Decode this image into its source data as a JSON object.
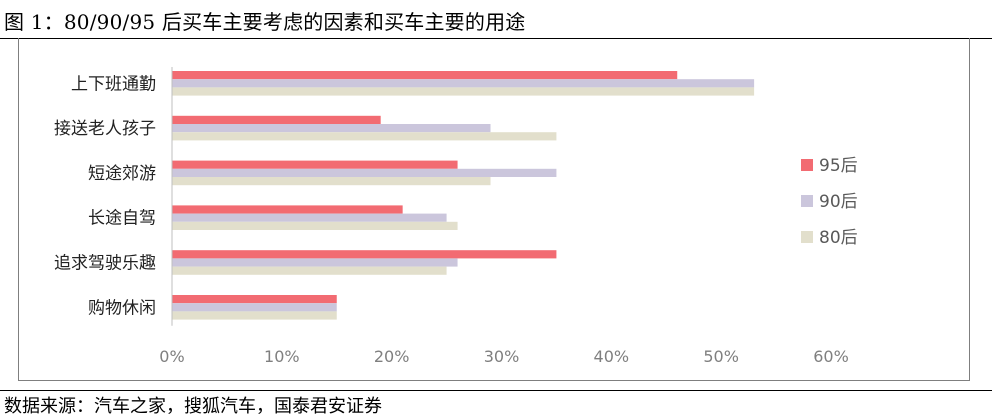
{
  "figure": {
    "title": "图 1：80/90/95 后买车主要考虑的因素和买车主要的用途",
    "source": "数据来源：汽车之家，搜狐汽车，国泰君安证券"
  },
  "chart_data": {
    "type": "bar",
    "orientation": "horizontal",
    "categories": [
      "上下班通勤",
      "接送老人孩子",
      "短途郊游",
      "长途自驾",
      "追求驾驶乐趣",
      "购物休闲"
    ],
    "series": [
      {
        "name": "95后",
        "color": "#f26b72",
        "values": [
          46,
          19,
          26,
          21,
          35,
          15
        ]
      },
      {
        "name": "90后",
        "color": "#cbc6dc",
        "values": [
          53,
          29,
          35,
          25,
          26,
          15
        ]
      },
      {
        "name": "80后",
        "color": "#e2dfcc",
        "values": [
          53,
          35,
          29,
          26,
          25,
          15
        ]
      }
    ],
    "xlim": [
      0,
      60
    ],
    "xticks": [
      0,
      10,
      20,
      30,
      40,
      50,
      60
    ],
    "xtick_labels": [
      "0%",
      "10%",
      "20%",
      "30%",
      "40%",
      "50%",
      "60%"
    ],
    "grid": false,
    "legend_position": "right"
  }
}
